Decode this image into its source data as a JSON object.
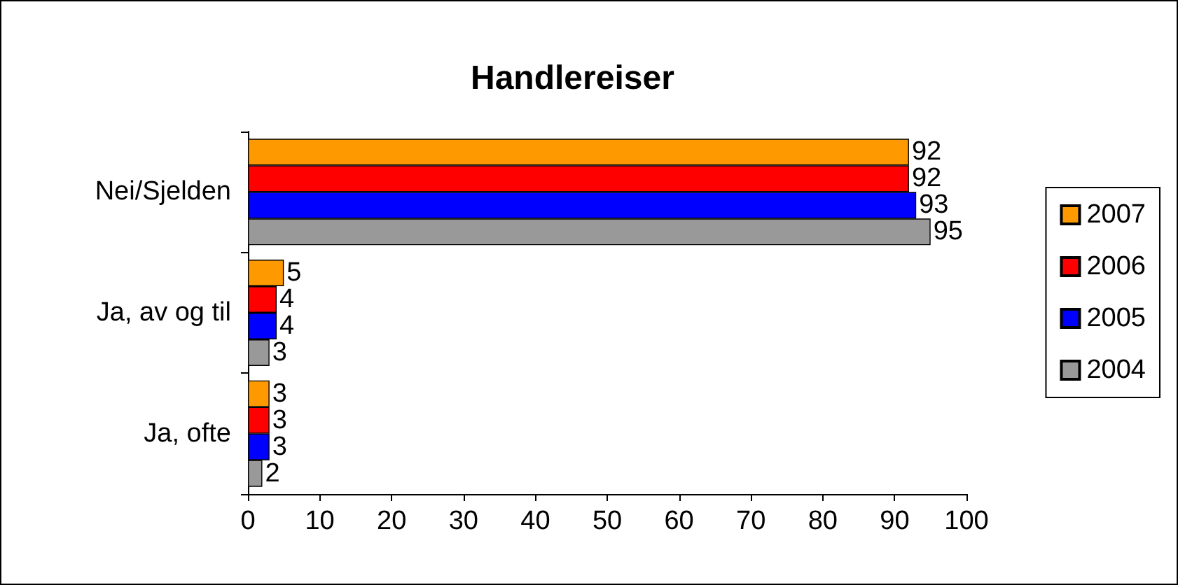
{
  "chart_data": {
    "type": "bar",
    "title": "Handlereiser",
    "orientation": "horizontal",
    "categories": [
      "Nei/Sjelden",
      "Ja, av og til",
      "Ja, ofte"
    ],
    "series": [
      {
        "name": "2007",
        "color": "#ff9900",
        "values": [
          92,
          5,
          3
        ]
      },
      {
        "name": "2006",
        "color": "#ff0000",
        "values": [
          92,
          4,
          3
        ]
      },
      {
        "name": "2005",
        "color": "#0000ff",
        "values": [
          93,
          4,
          3
        ]
      },
      {
        "name": "2004",
        "color": "#999999",
        "values": [
          95,
          3,
          2
        ]
      }
    ],
    "xlim": [
      0,
      100
    ],
    "xticks": [
      0,
      10,
      20,
      30,
      40,
      50,
      60,
      70,
      80,
      90,
      100
    ],
    "data_labels": true,
    "grid": false,
    "legend": "right"
  }
}
